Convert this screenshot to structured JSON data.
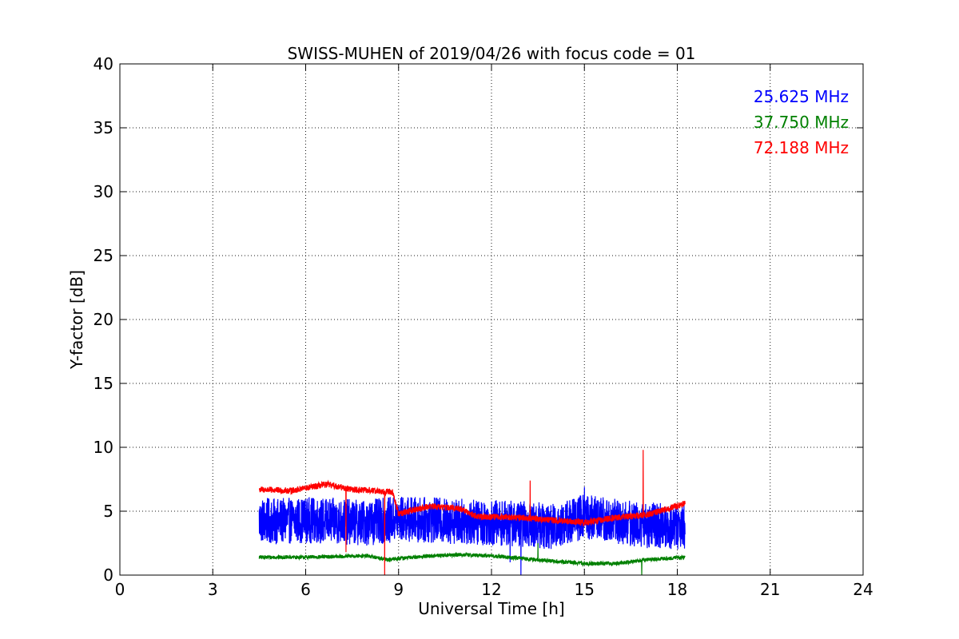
{
  "chart_data": {
    "type": "line",
    "title": "SWISS-MUHEN of 2019/04/26 with focus code = 01",
    "xlabel": "Universal Time [h]",
    "ylabel": "Y-factor [dB]",
    "xlim": [
      0,
      24
    ],
    "ylim": [
      0,
      40
    ],
    "xticks": [
      0,
      3,
      6,
      9,
      12,
      15,
      18,
      21,
      24
    ],
    "yticks": [
      0,
      5,
      10,
      15,
      20,
      25,
      30,
      35,
      40
    ],
    "grid": true,
    "legend_position": "top-right",
    "series": [
      {
        "name": "25.625 MHz",
        "color": "#0000ff",
        "x_range": [
          4.5,
          18.25
        ],
        "center": [
          [
            4.5,
            4.3
          ],
          [
            5.0,
            4.2
          ],
          [
            6.0,
            4.3
          ],
          [
            7.0,
            4.2
          ],
          [
            8.0,
            4.1
          ],
          [
            9.0,
            4.4
          ],
          [
            10.0,
            4.3
          ],
          [
            11.0,
            4.2
          ],
          [
            12.0,
            4.1
          ],
          [
            13.0,
            4.0
          ],
          [
            14.0,
            3.8
          ],
          [
            15.0,
            4.6
          ],
          [
            16.0,
            4.2
          ],
          [
            17.0,
            3.9
          ],
          [
            18.25,
            3.8
          ]
        ],
        "noise": 1.8,
        "spikes": [
          [
            12.95,
            0.0
          ],
          [
            15.0,
            6.9
          ],
          [
            12.6,
            1.0
          ]
        ]
      },
      {
        "name": "37.750 MHz",
        "color": "#008000",
        "x_range": [
          4.5,
          18.25
        ],
        "center": [
          [
            4.5,
            1.4
          ],
          [
            6.0,
            1.4
          ],
          [
            8.0,
            1.5
          ],
          [
            8.7,
            1.2
          ],
          [
            9.0,
            1.3
          ],
          [
            10.0,
            1.5
          ],
          [
            11.0,
            1.6
          ],
          [
            12.0,
            1.5
          ],
          [
            13.0,
            1.3
          ],
          [
            14.0,
            1.1
          ],
          [
            15.0,
            0.9
          ],
          [
            16.0,
            0.9
          ],
          [
            17.0,
            1.2
          ],
          [
            18.25,
            1.4
          ]
        ],
        "noise": 0.15,
        "spikes": [
          [
            16.85,
            0.0
          ],
          [
            13.5,
            2.5
          ]
        ]
      },
      {
        "name": "72.188 MHz",
        "color": "#ff0000",
        "x_range": [
          4.5,
          18.25
        ],
        "center": [
          [
            4.5,
            6.7
          ],
          [
            5.5,
            6.6
          ],
          [
            6.7,
            7.1
          ],
          [
            7.5,
            6.7
          ],
          [
            8.8,
            6.5
          ],
          [
            9.0,
            4.8
          ],
          [
            10.0,
            5.4
          ],
          [
            11.0,
            5.2
          ],
          [
            11.5,
            4.6
          ],
          [
            13.0,
            4.5
          ],
          [
            14.0,
            4.3
          ],
          [
            15.0,
            4.1
          ],
          [
            16.0,
            4.5
          ],
          [
            17.0,
            4.7
          ],
          [
            18.25,
            5.6
          ]
        ],
        "noise": 0.25,
        "spikes": [
          [
            7.3,
            1.8
          ],
          [
            8.55,
            0.0
          ],
          [
            13.25,
            7.4
          ],
          [
            16.9,
            9.8
          ]
        ]
      }
    ]
  }
}
